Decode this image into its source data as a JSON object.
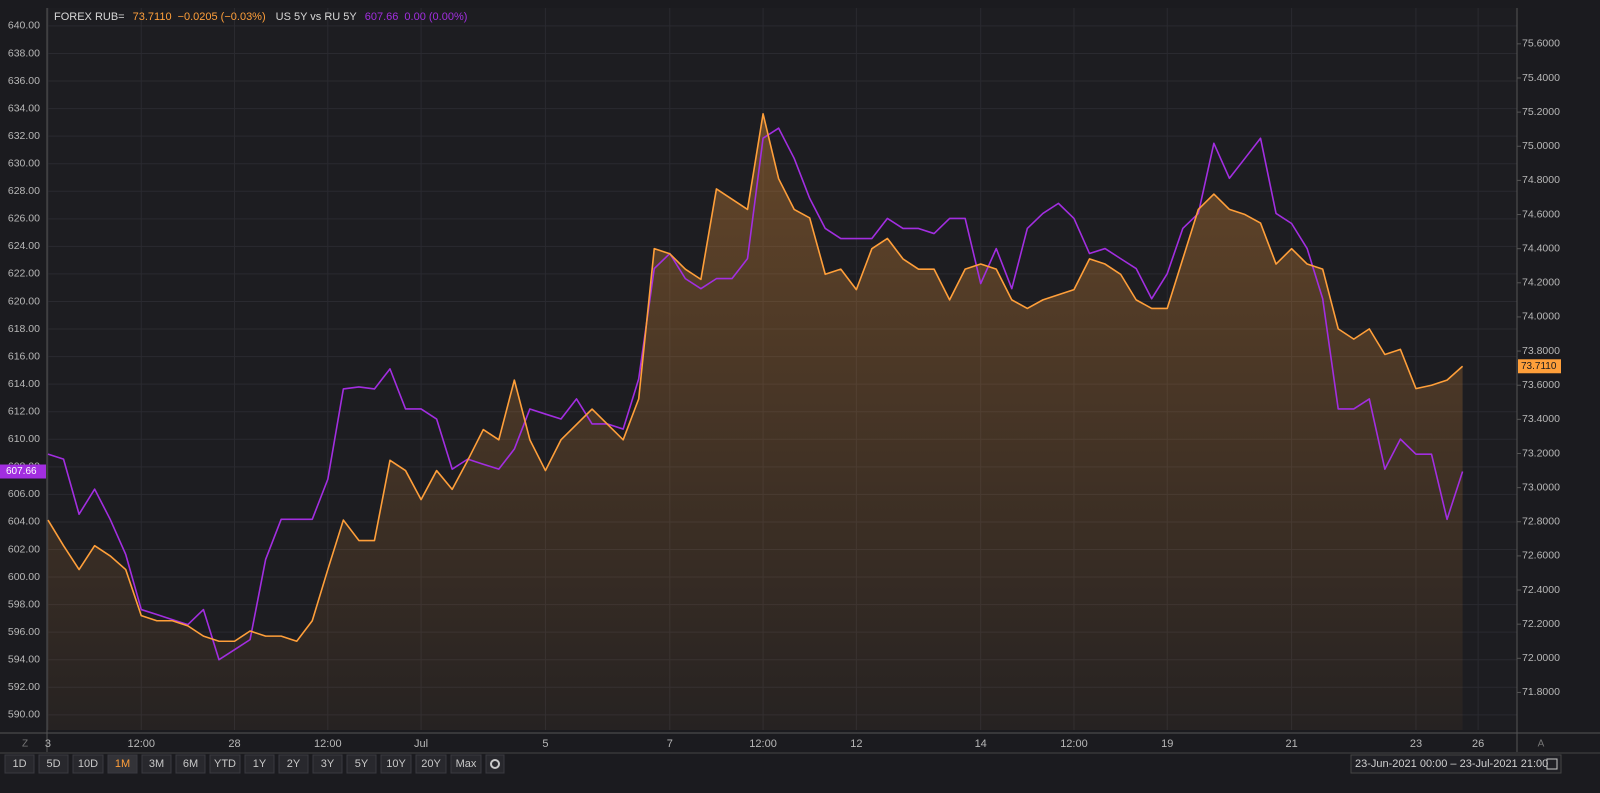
{
  "chart_data": {
    "type": "line",
    "x": [
      0,
      0.25,
      0.5,
      0.75,
      1,
      1.25,
      1.5,
      1.75,
      2,
      2.25,
      2.5,
      2.75,
      3,
      3.25,
      3.5,
      3.75,
      4,
      4.25,
      4.5,
      4.75,
      5,
      5.25,
      5.5,
      5.75,
      6,
      6.25,
      6.5,
      6.75,
      7,
      7.25,
      7.5,
      7.75,
      8,
      8.25,
      8.5,
      8.75,
      9,
      9.25,
      9.5,
      9.75,
      10,
      10.25,
      10.5,
      10.75,
      11,
      11.25,
      11.5,
      11.75,
      12,
      12.25,
      12.5,
      12.75,
      13,
      13.25,
      13.5,
      13.75,
      14,
      14.25,
      14.5,
      14.75,
      15,
      15.25,
      15.5,
      15.75,
      16,
      16.25,
      16.5,
      16.75,
      17,
      17.25,
      17.5,
      17.75,
      18,
      18.25,
      18.5,
      18.75,
      19,
      19.25,
      19.5,
      19.75,
      20,
      20.25,
      20.5,
      20.75,
      21,
      21.25,
      21.5,
      21.75,
      22,
      22.25,
      22.5,
      22.75
    ],
    "series": [
      {
        "name": "FOREX RUB=",
        "color": "#ff9f3a",
        "axis": "y2",
        "legend_value": "73.7110",
        "legend_change": "−0.0205 (−0.03%)",
        "values": [
          72.81,
          72.66,
          72.52,
          72.66,
          72.6,
          72.52,
          72.25,
          72.22,
          72.22,
          72.19,
          72.13,
          72.1,
          72.1,
          72.16,
          72.13,
          72.13,
          72.1,
          72.22,
          72.52,
          72.81,
          72.69,
          72.69,
          73.16,
          73.1,
          72.93,
          73.1,
          72.99,
          73.16,
          73.34,
          73.28,
          73.63,
          73.28,
          73.1,
          73.28,
          73.37,
          73.46,
          73.37,
          73.28,
          73.52,
          74.4,
          74.37,
          74.28,
          74.22,
          74.75,
          74.69,
          74.63,
          75.19,
          74.81,
          74.63,
          74.58,
          74.25,
          74.28,
          74.16,
          74.4,
          74.46,
          74.34,
          74.28,
          74.28,
          74.1,
          74.28,
          74.31,
          74.28,
          74.1,
          74.05,
          74.1,
          74.13,
          74.16,
          74.34,
          74.31,
          74.25,
          74.1,
          74.05,
          74.05,
          74.34,
          74.63,
          74.72,
          74.63,
          74.6,
          74.55,
          74.31,
          74.4,
          74.31,
          74.28,
          73.93,
          73.87,
          73.93,
          73.78,
          73.81,
          73.58,
          73.6,
          73.63,
          73.711
        ]
      },
      {
        "name": "US 5Y vs RU 5Y",
        "color": "#a22ee0",
        "axis": "y",
        "legend_value": "607.66",
        "legend_change": "0.00 (0.00%)",
        "values": [
          608.92,
          608.56,
          604.56,
          606.38,
          604.19,
          601.64,
          597.64,
          597.28,
          596.91,
          596.55,
          597.64,
          594.0,
          594.73,
          595.46,
          601.28,
          604.19,
          604.19,
          604.19,
          607.1,
          613.65,
          613.8,
          613.65,
          615.11,
          612.2,
          612.2,
          611.47,
          607.83,
          608.56,
          608.19,
          607.83,
          609.29,
          612.2,
          611.83,
          611.47,
          612.93,
          611.11,
          611.11,
          610.74,
          614.38,
          622.39,
          623.48,
          621.66,
          620.93,
          621.66,
          621.66,
          623.11,
          631.85,
          632.58,
          630.39,
          627.48,
          625.3,
          624.57,
          624.57,
          624.57,
          626.03,
          625.3,
          625.3,
          624.93,
          626.03,
          626.03,
          621.3,
          623.84,
          620.93,
          625.3,
          626.39,
          627.12,
          626.03,
          623.48,
          623.84,
          623.11,
          622.39,
          620.2,
          622.02,
          625.3,
          626.39,
          631.48,
          628.94,
          630.39,
          631.85,
          626.39,
          625.66,
          623.84,
          620.2,
          612.2,
          612.2,
          612.93,
          607.83,
          610.01,
          608.92,
          608.92,
          604.19,
          607.66
        ]
      }
    ],
    "xlim": [
      -0.016,
      23.625
    ],
    "xticks": [
      {
        "value": 0,
        "label": "3"
      },
      {
        "value": 1.5,
        "label": "12:00"
      },
      {
        "value": 3,
        "label": "28"
      },
      {
        "value": 4.5,
        "label": "12:00"
      },
      {
        "value": 6,
        "label": "Jul"
      },
      {
        "value": 8,
        "label": "5"
      },
      {
        "value": 10,
        "label": "7"
      },
      {
        "value": 11.5,
        "label": "12:00"
      },
      {
        "value": 13,
        "label": "12"
      },
      {
        "value": 15,
        "label": "14"
      },
      {
        "value": 16.5,
        "label": "12:00"
      },
      {
        "value": 18,
        "label": "19"
      },
      {
        "value": 20,
        "label": "21"
      },
      {
        "value": 22,
        "label": "23"
      },
      {
        "value": 23,
        "label": "26"
      }
    ],
    "ylim": [
      588.9,
      641.3
    ],
    "yticks": [
      {
        "value": 590,
        "label": "590.00"
      },
      {
        "value": 592,
        "label": "592.00"
      },
      {
        "value": 594,
        "label": "594.00"
      },
      {
        "value": 596,
        "label": "596.00"
      },
      {
        "value": 598,
        "label": "598.00"
      },
      {
        "value": 600,
        "label": "600.00"
      },
      {
        "value": 602,
        "label": "602.00"
      },
      {
        "value": 604,
        "label": "604.00"
      },
      {
        "value": 606,
        "label": "606.00"
      },
      {
        "value": 608,
        "label": "608.00"
      },
      {
        "value": 610,
        "label": "610.00"
      },
      {
        "value": 612,
        "label": "612.00"
      },
      {
        "value": 614,
        "label": "614.00"
      },
      {
        "value": 616,
        "label": "616.00"
      },
      {
        "value": 618,
        "label": "618.00"
      },
      {
        "value": 620,
        "label": "620.00"
      },
      {
        "value": 622,
        "label": "622.00"
      },
      {
        "value": 624,
        "label": "624.00"
      },
      {
        "value": 626,
        "label": "626.00"
      },
      {
        "value": 628,
        "label": "628.00"
      },
      {
        "value": 630,
        "label": "630.00"
      },
      {
        "value": 632,
        "label": "632.00"
      },
      {
        "value": 634,
        "label": "634.00"
      },
      {
        "value": 636,
        "label": "636.00"
      },
      {
        "value": 638,
        "label": "638.00"
      },
      {
        "value": 640,
        "label": "640.00"
      }
    ],
    "y2lim": [
      71.58,
      75.81
    ],
    "y2ticks": [
      {
        "value": 71.8,
        "label": "71.8000"
      },
      {
        "value": 72,
        "label": "72.0000"
      },
      {
        "value": 72.2,
        "label": "72.2000"
      },
      {
        "value": 72.4,
        "label": "72.4000"
      },
      {
        "value": 72.6,
        "label": "72.6000"
      },
      {
        "value": 72.8,
        "label": "72.8000"
      },
      {
        "value": 73,
        "label": "73.0000"
      },
      {
        "value": 73.2,
        "label": "73.2000"
      },
      {
        "value": 73.4,
        "label": "73.4000"
      },
      {
        "value": 73.6,
        "label": "73.6000"
      },
      {
        "value": 73.8,
        "label": "73.8000"
      },
      {
        "value": 74,
        "label": "74.0000"
      },
      {
        "value": 74.2,
        "label": "74.2000"
      },
      {
        "value": 74.4,
        "label": "74.4000"
      },
      {
        "value": 74.6,
        "label": "74.6000"
      },
      {
        "value": 74.8,
        "label": "74.8000"
      },
      {
        "value": 75,
        "label": "75.0000"
      },
      {
        "value": 75.2,
        "label": "75.2000"
      },
      {
        "value": 75.4,
        "label": "75.4000"
      },
      {
        "value": 75.6,
        "label": "75.6000"
      }
    ],
    "grid": true,
    "area_fill_series": 0
  },
  "toolbar": {
    "left_button": "Z",
    "range_buttons": [
      "1D",
      "5D",
      "10D",
      "1M",
      "3M",
      "6M",
      "YTD",
      "1Y",
      "2Y",
      "3Y",
      "5Y",
      "10Y",
      "20Y",
      "Max"
    ],
    "active_range": "1M",
    "date_range": "23-Jun-2021 00:00  –  23-Jul-2021 21:00",
    "right_button": "A"
  }
}
